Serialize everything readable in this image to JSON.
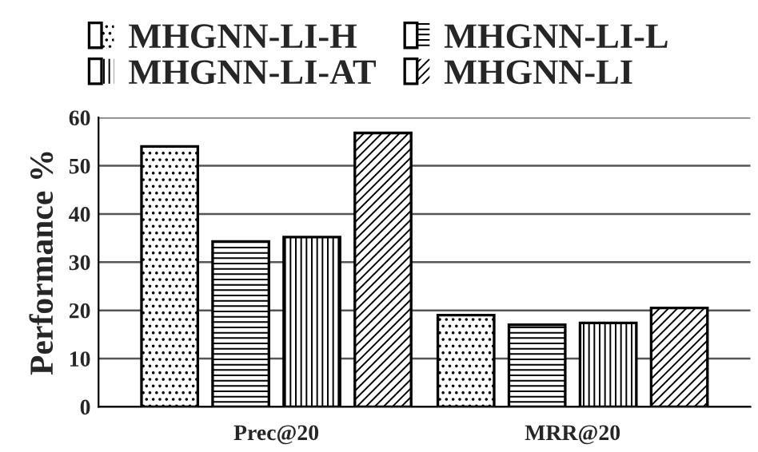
{
  "chart_data": {
    "type": "bar",
    "ylabel": "Performance %",
    "categories": [
      "Prec@20",
      "MRR@20"
    ],
    "series": [
      {
        "name": "MHGNN-LI-H",
        "color": "#ffffff",
        "values": [
          54.0,
          19.0
        ]
      },
      {
        "name": "MHGNN-LI-L",
        "color": "#ffffff",
        "values": [
          34.3,
          17.0
        ]
      },
      {
        "name": "MHGNN-LI-AT",
        "color": "#ffffff",
        "values": [
          35.2,
          17.4
        ]
      },
      {
        "name": "MHGNN-LI",
        "color": "#ffffff",
        "values": [
          56.8,
          20.5
        ]
      }
    ],
    "ylim": [
      0,
      60
    ],
    "yticks": [
      0,
      10,
      20,
      30,
      40,
      50,
      60
    ],
    "grid": "y",
    "legend": "top"
  }
}
